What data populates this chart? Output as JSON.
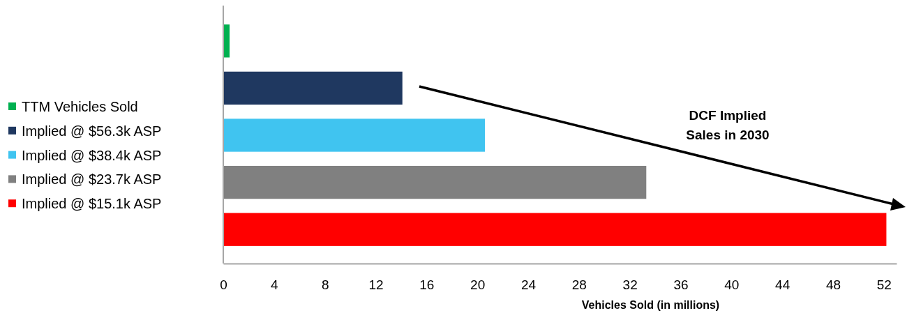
{
  "chart_data": {
    "type": "bar",
    "orientation": "horizontal",
    "categories": [
      null
    ],
    "series": [
      {
        "name": "TTM Vehicles Sold",
        "color": "#00b050",
        "values": [
          0.5
        ]
      },
      {
        "name": "Implied @ $56.3k ASP",
        "color": "#1f3860",
        "values": [
          14.1
        ]
      },
      {
        "name": "Implied @ $38.4k ASP",
        "color": "#40c4f0",
        "values": [
          20.6
        ]
      },
      {
        "name": "Implied @ $23.7k ASP",
        "color": "#808080",
        "values": [
          33.3
        ]
      },
      {
        "name": "Implied @ $15.1k ASP",
        "color": "#ff0000",
        "values": [
          52.2
        ]
      }
    ],
    "xlim": [
      0,
      53
    ],
    "xticks": [
      0,
      4,
      8,
      12,
      16,
      20,
      24,
      28,
      32,
      36,
      40,
      44,
      48,
      52
    ],
    "xlabel": "Vehicles Sold (in millions)",
    "legend": "left",
    "grid": false,
    "annotations": [
      "DCF Implied\nSales in 2030"
    ]
  }
}
